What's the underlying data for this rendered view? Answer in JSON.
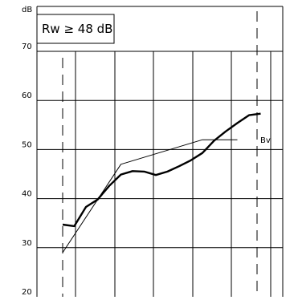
{
  "chart_data": {
    "type": "line",
    "unit_label": "dB",
    "rating_label": "Rw ≥ 48 dB",
    "ylim": [
      20,
      75
    ],
    "x_positions": 18,
    "y_ticks": [
      {
        "value": 70,
        "label": "70"
      },
      {
        "value": 60,
        "label": "60"
      },
      {
        "value": 50,
        "label": "50"
      },
      {
        "value": 40,
        "label": "40"
      },
      {
        "value": 30,
        "label": "30"
      },
      {
        "value": 20,
        "label": "20"
      }
    ],
    "series": [
      {
        "name": "",
        "style": "thick",
        "x": [
          1,
          2,
          3,
          4,
          5,
          6,
          7,
          8,
          9,
          10,
          11,
          12,
          13,
          14,
          15,
          16,
          17,
          18
        ],
        "values": [
          34.7,
          34.4,
          38.3,
          39.8,
          42.6,
          44.9,
          45.6,
          45.5,
          44.8,
          45.5,
          46.6,
          47.8,
          49.3,
          51.8,
          53.7,
          55.4,
          57.0,
          57.3
        ]
      },
      {
        "name": "",
        "style": "thin",
        "x": [
          1,
          6,
          13,
          16
        ],
        "values": [
          29,
          47,
          52,
          52
        ]
      }
    ],
    "annotation": {
      "label": "Bv",
      "value": 52
    },
    "grid": true
  }
}
